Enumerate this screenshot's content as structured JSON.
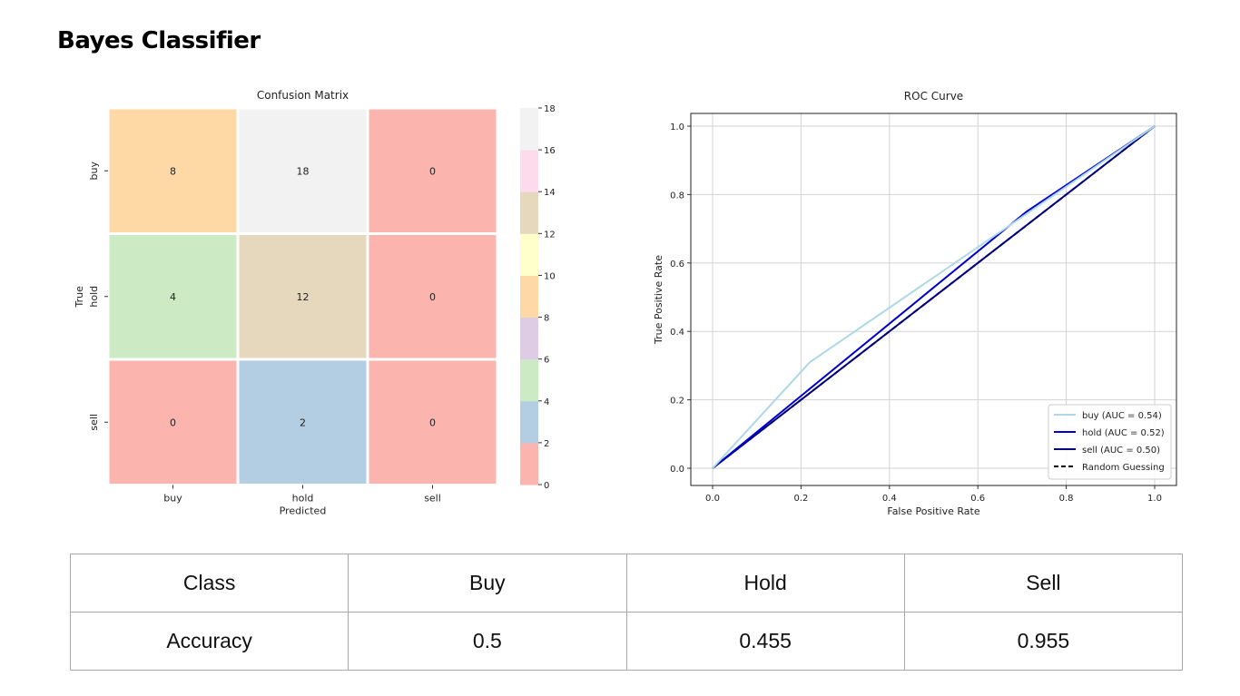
{
  "page": {
    "title": "Bayes Classifier"
  },
  "chart_data": [
    {
      "type": "heatmap",
      "title": "Confusion Matrix",
      "xlabel": "Predicted",
      "ylabel": "True",
      "x_categories": [
        "buy",
        "hold",
        "sell"
      ],
      "y_categories": [
        "buy",
        "hold",
        "sell"
      ],
      "values": [
        [
          8,
          18,
          0
        ],
        [
          4,
          12,
          0
        ],
        [
          0,
          2,
          0
        ]
      ],
      "colorbar": {
        "ticks": [
          0,
          2,
          4,
          6,
          8,
          10,
          12,
          14,
          16,
          18
        ],
        "range": [
          0,
          18
        ],
        "colormap": "Pastel1",
        "colors": [
          "#fbb4ae",
          "#b3cde3",
          "#ccebc5",
          "#decbe4",
          "#fed9a6",
          "#ffffcc",
          "#e5d8bd",
          "#fddaec",
          "#f2f2f2"
        ]
      }
    },
    {
      "type": "line",
      "title": "ROC Curve",
      "xlabel": "False Positive Rate",
      "ylabel": "True Positive Rate",
      "xlim": [
        0,
        1
      ],
      "ylim": [
        0,
        1
      ],
      "xticks": [
        "0.0",
        "0.2",
        "0.4",
        "0.6",
        "0.8",
        "1.0"
      ],
      "yticks": [
        "0.0",
        "0.2",
        "0.4",
        "0.6",
        "0.8",
        "1.0"
      ],
      "grid": true,
      "legend_position": "bottom-right",
      "series": [
        {
          "name": "buy (AUC = 0.54)",
          "color": "#add8e6",
          "style": "solid",
          "x": [
            0,
            0.22,
            1
          ],
          "y": [
            0,
            0.31,
            1
          ]
        },
        {
          "name": "hold (AUC = 0.52)",
          "color": "#0000cd",
          "style": "solid",
          "x": [
            0,
            0.71,
            1
          ],
          "y": [
            0,
            0.75,
            1
          ]
        },
        {
          "name": "sell (AUC = 0.50)",
          "color": "#000080",
          "style": "solid",
          "x": [
            0,
            1
          ],
          "y": [
            0,
            1
          ]
        },
        {
          "name": "Random Guessing",
          "color": "#000000",
          "style": "dashed",
          "x": [
            0,
            1
          ],
          "y": [
            0,
            1
          ]
        }
      ]
    }
  ],
  "table": {
    "rows": [
      [
        "Class",
        "Buy",
        "Hold",
        "Sell"
      ],
      [
        "Accuracy",
        "0.5",
        "0.455",
        "0.955"
      ]
    ]
  }
}
